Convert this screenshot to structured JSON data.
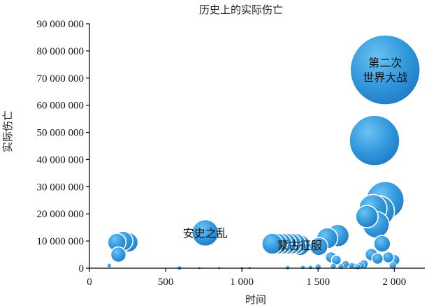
{
  "chart_data": {
    "type": "scatter",
    "title": "历史上的实际伤亡",
    "xlabel": "时间",
    "ylabel": "实际伤亡",
    "xlim": [
      0,
      2200
    ],
    "ylim": [
      0,
      90000000
    ],
    "x_ticks": [
      0,
      500,
      1000,
      1500,
      2000
    ],
    "x_tick_labels": [
      "0",
      "500",
      "1 000",
      "1 500",
      "2 000"
    ],
    "y_ticks": [
      0,
      10000000,
      20000000,
      30000000,
      40000000,
      50000000,
      60000000,
      70000000,
      80000000,
      90000000
    ],
    "y_tick_labels": [
      "0",
      "10 000 000",
      "20 000 000",
      "30 000 000",
      "40 000 000",
      "50 000 000",
      "60 000 000",
      "70 000 000",
      "80 000 000",
      "90 000 000"
    ],
    "grid": false,
    "bubble_color": "#3399dd",
    "points": [
      {
        "x": 130,
        "y": 1000000,
        "size": 3
      },
      {
        "x": 180,
        "y": 9500000,
        "size": 13
      },
      {
        "x": 190,
        "y": 5000000,
        "size": 11
      },
      {
        "x": 220,
        "y": 10000000,
        "size": 14
      },
      {
        "x": 255,
        "y": 9500000,
        "size": 14
      },
      {
        "x": 590,
        "y": 100000,
        "size": 3
      },
      {
        "x": 720,
        "y": 50000,
        "size": 2
      },
      {
        "x": 760,
        "y": 13000000,
        "size": 19,
        "label": "安史之乱"
      },
      {
        "x": 1200,
        "y": 9000000,
        "size": 15
      },
      {
        "x": 1230,
        "y": 9000000,
        "size": 15
      },
      {
        "x": 1260,
        "y": 9000000,
        "size": 15
      },
      {
        "x": 1290,
        "y": 9000000,
        "size": 15
      },
      {
        "x": 1320,
        "y": 9000000,
        "size": 15
      },
      {
        "x": 1350,
        "y": 9000000,
        "size": 15
      },
      {
        "x": 1380,
        "y": 8500000,
        "size": 15,
        "label": "蒙古征服"
      },
      {
        "x": 1505,
        "y": 8000000,
        "size": 13
      },
      {
        "x": 1560,
        "y": 11000000,
        "size": 15
      },
      {
        "x": 1630,
        "y": 12000000,
        "size": 16
      },
      {
        "x": 1585,
        "y": 4000000,
        "size": 8
      },
      {
        "x": 1620,
        "y": 3000000,
        "size": 7
      },
      {
        "x": 1680,
        "y": 1500000,
        "size": 5
      },
      {
        "x": 1720,
        "y": 1000000,
        "size": 4
      },
      {
        "x": 1760,
        "y": 500000,
        "size": 4
      },
      {
        "x": 1820,
        "y": 19000000,
        "size": 16
      },
      {
        "x": 1860,
        "y": 22000000,
        "size": 20
      },
      {
        "x": 1880,
        "y": 16000000,
        "size": 19
      },
      {
        "x": 1900,
        "y": 21000000,
        "size": 22
      },
      {
        "x": 1940,
        "y": 25000000,
        "size": 27
      },
      {
        "x": 1870,
        "y": 47000000,
        "size": 36
      },
      {
        "x": 1940,
        "y": 73000000,
        "size": 50,
        "label": "第二次\n世界大战"
      },
      {
        "x": 1920,
        "y": 9000000,
        "size": 12
      },
      {
        "x": 1850,
        "y": 5000000,
        "size": 9
      },
      {
        "x": 1890,
        "y": 3500000,
        "size": 8
      },
      {
        "x": 1960,
        "y": 4000000,
        "size": 8
      },
      {
        "x": 2000,
        "y": 3000000,
        "size": 8
      },
      {
        "x": 1990,
        "y": 1000000,
        "size": 5
      },
      {
        "x": 1800,
        "y": 1500000,
        "size": 6
      },
      {
        "x": 1500,
        "y": 500000,
        "size": 4
      },
      {
        "x": 1450,
        "y": 300000,
        "size": 3
      },
      {
        "x": 1400,
        "y": 300000,
        "size": 3
      },
      {
        "x": 1300,
        "y": 200000,
        "size": 3
      },
      {
        "x": 1000,
        "y": 100000,
        "size": 2
      },
      {
        "x": 1050,
        "y": 100000,
        "size": 2
      },
      {
        "x": 850,
        "y": 100000,
        "size": 2
      },
      {
        "x": 1600,
        "y": 700000,
        "size": 4
      },
      {
        "x": 1650,
        "y": 600000,
        "size": 4
      },
      {
        "x": 1740,
        "y": 700000,
        "size": 4
      },
      {
        "x": 1780,
        "y": 1000000,
        "size": 5
      }
    ]
  }
}
